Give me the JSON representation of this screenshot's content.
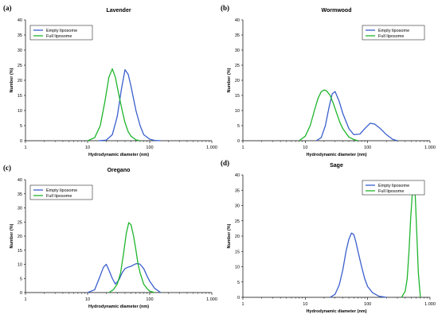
{
  "chart_data": [
    {
      "panel": "(a)",
      "type": "line",
      "title": "Lavender",
      "xlabel": "Hydrodynamic diameter (nm)",
      "ylabel": "Number (%)",
      "xscale": "log",
      "xlim": [
        1,
        1000
      ],
      "ylim": [
        0,
        40
      ],
      "xticks": [
        1,
        10,
        100,
        1000
      ],
      "xtick_labels": [
        "1",
        "10",
        "100",
        "1.000"
      ],
      "yticks": [
        0,
        5,
        10,
        15,
        20,
        25,
        30,
        35,
        40
      ],
      "legend_position": "top-left",
      "colors": {
        "Empty liposome": "#3a5fcd",
        "Full liposome": "#1fb52c"
      },
      "series": [
        {
          "name": "Empty liposome",
          "x": [
            15,
            20,
            25,
            30,
            35,
            40,
            45,
            50,
            60,
            70,
            80,
            100,
            120,
            150
          ],
          "y": [
            0,
            0.2,
            2,
            8,
            17,
            23.5,
            22,
            18,
            10,
            5,
            2,
            0.5,
            0.1,
            0
          ]
        },
        {
          "name": "Full liposome",
          "x": [
            10,
            13,
            16,
            19,
            22,
            25,
            28,
            32,
            36,
            40,
            45,
            50,
            60,
            70
          ],
          "y": [
            0,
            1,
            5,
            13,
            21,
            23.8,
            21,
            15,
            10,
            6,
            3,
            1.5,
            0.3,
            0
          ]
        }
      ]
    },
    {
      "panel": "(b)",
      "type": "line",
      "title": "Wormwood",
      "xlabel": "Hydrodynamic diameter (nm)",
      "ylabel": "Number (%)",
      "xscale": "log",
      "xlim": [
        1,
        1000
      ],
      "ylim": [
        0,
        40
      ],
      "xticks": [
        1,
        10,
        100,
        1000
      ],
      "xtick_labels": [
        "1",
        "10",
        "100",
        "1.000"
      ],
      "yticks": [
        0,
        5,
        10,
        15,
        20,
        25,
        30,
        35,
        40
      ],
      "legend_position": "top-right",
      "colors": {
        "Empty liposome": "#3a5fcd",
        "Full liposome": "#1fb52c"
      },
      "series": [
        {
          "name": "Empty liposome",
          "x": [
            15,
            18,
            21,
            24,
            27,
            30,
            35,
            40,
            50,
            60,
            75,
            90,
            110,
            130,
            160,
            200,
            250,
            300
          ],
          "y": [
            0,
            1,
            5,
            11,
            15.5,
            16.3,
            13,
            9,
            4,
            2,
            2.2,
            4,
            5.8,
            5.5,
            4,
            2,
            0.5,
            0
          ]
        },
        {
          "name": "Full liposome",
          "x": [
            8,
            10,
            12,
            14,
            16,
            18,
            20,
            22,
            25,
            28,
            32,
            36,
            40,
            45,
            50,
            60,
            70
          ],
          "y": [
            0,
            1.5,
            5,
            10,
            14,
            16.2,
            16.8,
            16.5,
            15,
            12.5,
            9,
            6,
            4,
            2.5,
            1.2,
            0.4,
            0
          ]
        }
      ]
    },
    {
      "panel": "(c)",
      "type": "line",
      "title": "Oregano",
      "xlabel": "Hydrodynamic diameter (nm)",
      "ylabel": "Number (%)",
      "xscale": "log",
      "xlim": [
        1,
        1000
      ],
      "ylim": [
        0,
        40
      ],
      "xticks": [
        1,
        10,
        100,
        1000
      ],
      "xtick_labels": [
        "1",
        "10",
        "100",
        "1.000"
      ],
      "yticks": [
        0,
        5,
        10,
        15,
        20,
        25,
        30,
        35,
        40
      ],
      "legend_position": "top-left",
      "colors": {
        "Empty liposome": "#3a5fcd",
        "Full liposome": "#1fb52c"
      },
      "series": [
        {
          "name": "Empty liposome",
          "x": [
            10,
            13,
            16,
            18,
            20,
            22,
            25,
            28,
            32,
            36,
            40,
            45,
            50,
            55,
            60,
            65,
            70,
            80,
            90,
            100,
            120,
            150
          ],
          "y": [
            0,
            1,
            6,
            9,
            10,
            8,
            5,
            3,
            4.5,
            7,
            8.5,
            9,
            9.3,
            9.8,
            10.2,
            10.3,
            10,
            8.5,
            6,
            4,
            1.5,
            0
          ]
        },
        {
          "name": "Full liposome",
          "x": [
            22,
            26,
            30,
            34,
            38,
            42,
            46,
            50,
            55,
            60,
            65,
            70,
            80,
            90,
            100,
            120
          ],
          "y": [
            0,
            1,
            3,
            7,
            14,
            21,
            24.8,
            24,
            20,
            15,
            10,
            7,
            3,
            1.5,
            0.5,
            0
          ]
        }
      ]
    },
    {
      "panel": "(d)",
      "type": "line",
      "title": "Sage",
      "xlabel": "Hydrodynamic diameter (nm)",
      "ylabel": "Number (%)",
      "xscale": "log",
      "xlim": [
        1,
        1000
      ],
      "ylim": [
        0,
        40
      ],
      "xticks": [
        1,
        10,
        100,
        1000
      ],
      "xtick_labels": [
        "1",
        "10",
        "100",
        "1.000"
      ],
      "yticks": [
        0,
        5,
        10,
        15,
        20,
        25,
        30,
        35,
        40
      ],
      "legend_position": "top-right",
      "colors": {
        "Empty liposome": "#3a5fcd",
        "Full liposome": "#1fb52c"
      },
      "series": [
        {
          "name": "Empty liposome",
          "x": [
            25,
            30,
            35,
            40,
            45,
            50,
            55,
            60,
            65,
            70,
            80,
            90,
            100,
            120,
            150,
            200
          ],
          "y": [
            0,
            1,
            4,
            9,
            15,
            19,
            21,
            20.5,
            18,
            15,
            10,
            6,
            3.5,
            1.5,
            0.4,
            0
          ]
        },
        {
          "name": "Full liposome",
          "x": [
            350,
            400,
            430,
            460,
            490,
            520,
            550,
            580,
            610,
            650,
            700
          ],
          "y": [
            0,
            2,
            6,
            15,
            26,
            34,
            37,
            33,
            22,
            8,
            0
          ]
        }
      ]
    }
  ]
}
